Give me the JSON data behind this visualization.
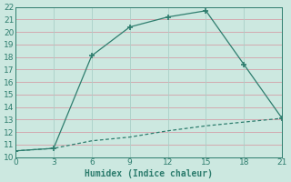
{
  "xlabel": "Humidex (Indice chaleur)",
  "line1_x": [
    0,
    3,
    6,
    9,
    12,
    15,
    18,
    21
  ],
  "line1_y": [
    10.5,
    10.7,
    18.1,
    20.4,
    21.2,
    21.7,
    17.4,
    13.1
  ],
  "line2_x": [
    0,
    3,
    6,
    9,
    12,
    15,
    18,
    21
  ],
  "line2_y": [
    10.5,
    10.7,
    11.3,
    11.6,
    12.1,
    12.5,
    12.8,
    13.1
  ],
  "line_color": "#2e7d6e",
  "bg_color": "#cce8e0",
  "grid_major_color": "#aacfc7",
  "grid_minor_color": "#d4a0a8",
  "xlim": [
    0,
    21
  ],
  "ylim": [
    10,
    22
  ],
  "xticks": [
    0,
    3,
    6,
    9,
    12,
    15,
    18,
    21
  ],
  "yticks": [
    10,
    11,
    12,
    13,
    14,
    15,
    16,
    17,
    18,
    19,
    20,
    21,
    22
  ]
}
